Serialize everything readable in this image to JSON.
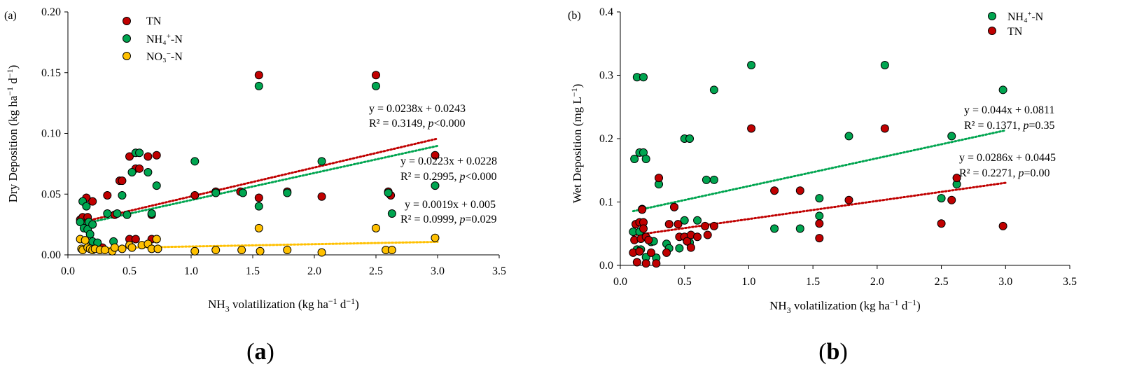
{
  "chart_data": [
    {
      "type": "scatter",
      "panel_tag": "(a)",
      "caption": {
        "open": "(",
        "letter": "a",
        "close": ")"
      },
      "xlabel": {
        "pre": "NH",
        "sub": "3",
        "post": " volatilization (kg ha",
        "sup": "−1",
        "mid": " d",
        "sup2": "−1",
        "end": ")"
      },
      "ylabel": {
        "pre": "Dry Deposition (kg ha",
        "sup": "−1",
        "mid": " d",
        "sup2": "−1",
        "end": ")"
      },
      "xlim": [
        0,
        3.5
      ],
      "ylim": [
        0,
        0.2
      ],
      "xticks": [
        "0.0",
        "0.5",
        "1.0",
        "1.5",
        "2.0",
        "2.5",
        "3.0",
        "3.5"
      ],
      "xtick_values": [
        0,
        0.5,
        1,
        1.5,
        2,
        2.5,
        3,
        3.5
      ],
      "yticks": [
        "0.00",
        "0.05",
        "0.10",
        "0.15",
        "0.20"
      ],
      "ytick_values": [
        0,
        0.05,
        0.1,
        0.15,
        0.2
      ],
      "legend_position": "top-left",
      "series": [
        {
          "name": "TN",
          "legend": {
            "base": "TN",
            "sup": "",
            "end": ""
          },
          "color": "#c00000",
          "points": [
            [
              0.1,
              0.029
            ],
            [
              0.12,
              0.031
            ],
            [
              0.15,
              0.047
            ],
            [
              0.16,
              0.031
            ],
            [
              0.2,
              0.044
            ],
            [
              0.24,
              0.008
            ],
            [
              0.28,
              0.006
            ],
            [
              0.32,
              0.049
            ],
            [
              0.38,
              0.033
            ],
            [
              0.42,
              0.061
            ],
            [
              0.44,
              0.061
            ],
            [
              0.5,
              0.081
            ],
            [
              0.5,
              0.013
            ],
            [
              0.55,
              0.071
            ],
            [
              0.55,
              0.013
            ],
            [
              0.58,
              0.071
            ],
            [
              0.65,
              0.081
            ],
            [
              0.68,
              0.013
            ],
            [
              0.68,
              0.033
            ],
            [
              0.72,
              0.082
            ],
            [
              0.72,
              0.013
            ],
            [
              1.03,
              0.049
            ],
            [
              1.2,
              0.052
            ],
            [
              1.4,
              0.052
            ],
            [
              1.55,
              0.148
            ],
            [
              1.55,
              0.047
            ],
            [
              1.78,
              0.052
            ],
            [
              2.06,
              0.048
            ],
            [
              2.5,
              0.148
            ],
            [
              2.6,
              0.052
            ],
            [
              2.62,
              0.049
            ],
            [
              2.98,
              0.082
            ]
          ],
          "trend": {
            "x0": 0.1,
            "x1": 3.0,
            "slope": 0.0238,
            "intercept": 0.0243
          },
          "equation": "y = 0.0238x + 0.0243",
          "r2": {
            "pre": "R² = 0.3149, ",
            "p": "p",
            "post": "<0.000"
          }
        },
        {
          "name": "NH4+-N",
          "legend": {
            "base": "NH₄",
            "sup": "+",
            "end": "-N"
          },
          "color": "#00a550",
          "points": [
            [
              0.1,
              0.027
            ],
            [
              0.12,
              0.044
            ],
            [
              0.13,
              0.022
            ],
            [
              0.15,
              0.04
            ],
            [
              0.16,
              0.021
            ],
            [
              0.17,
              0.027
            ],
            [
              0.18,
              0.017
            ],
            [
              0.2,
              0.011
            ],
            [
              0.2,
              0.025
            ],
            [
              0.24,
              0.01
            ],
            [
              0.32,
              0.034
            ],
            [
              0.37,
              0.011
            ],
            [
              0.4,
              0.034
            ],
            [
              0.44,
              0.049
            ],
            [
              0.48,
              0.033
            ],
            [
              0.52,
              0.068
            ],
            [
              0.55,
              0.084
            ],
            [
              0.58,
              0.084
            ],
            [
              0.65,
              0.068
            ],
            [
              0.68,
              0.034
            ],
            [
              0.72,
              0.057
            ],
            [
              1.03,
              0.077
            ],
            [
              1.2,
              0.051
            ],
            [
              1.42,
              0.051
            ],
            [
              1.55,
              0.139
            ],
            [
              1.55,
              0.04
            ],
            [
              1.78,
              0.051
            ],
            [
              2.06,
              0.077
            ],
            [
              2.5,
              0.139
            ],
            [
              2.6,
              0.051
            ],
            [
              2.63,
              0.034
            ],
            [
              2.98,
              0.057
            ]
          ],
          "trend": {
            "x0": 0.1,
            "x1": 3.0,
            "slope": 0.0223,
            "intercept": 0.0228
          },
          "equation": "y = 0.0223x + 0.0228",
          "r2": {
            "pre": "R² = 0.2995, ",
            "p": "p",
            "post": "<0.000"
          }
        },
        {
          "name": "NO3--N",
          "legend": {
            "base": "NO₃",
            "sup": "−",
            "end": "-N"
          },
          "color": "#ffc000",
          "points": [
            [
              0.1,
              0.013
            ],
            [
              0.11,
              0.005
            ],
            [
              0.12,
              0.004
            ],
            [
              0.14,
              0.012
            ],
            [
              0.16,
              0.006
            ],
            [
              0.18,
              0.005
            ],
            [
              0.2,
              0.004
            ],
            [
              0.22,
              0.005
            ],
            [
              0.26,
              0.004
            ],
            [
              0.3,
              0.004
            ],
            [
              0.36,
              0.003
            ],
            [
              0.38,
              0.006
            ],
            [
              0.44,
              0.005
            ],
            [
              0.5,
              0.008
            ],
            [
              0.52,
              0.006
            ],
            [
              0.6,
              0.008
            ],
            [
              0.65,
              0.009
            ],
            [
              0.68,
              0.005
            ],
            [
              0.72,
              0.013
            ],
            [
              0.73,
              0.005
            ],
            [
              1.03,
              0.003
            ],
            [
              1.2,
              0.004
            ],
            [
              1.41,
              0.004
            ],
            [
              1.55,
              0.022
            ],
            [
              1.56,
              0.003
            ],
            [
              1.78,
              0.004
            ],
            [
              2.06,
              0.002
            ],
            [
              2.5,
              0.022
            ],
            [
              2.58,
              0.004
            ],
            [
              2.63,
              0.004
            ],
            [
              2.98,
              0.014
            ]
          ],
          "trend": {
            "x0": 0.1,
            "x1": 3.0,
            "slope": 0.0019,
            "intercept": 0.005
          },
          "equation": "y = 0.0019x + 0.005",
          "r2": {
            "pre": "R² = 0.0999, ",
            "p": "p",
            "post": "=0.029"
          }
        }
      ]
    },
    {
      "type": "scatter",
      "panel_tag": "(b)",
      "caption": {
        "open": "(",
        "letter": "b",
        "close": ")"
      },
      "xlabel": {
        "pre": "NH",
        "sub": "3",
        "post": " volatilization (kg ha",
        "sup": "−1",
        "mid": " d",
        "sup2": "−1",
        "end": ")"
      },
      "ylabel": {
        "pre": "Wet Deposition (mg L",
        "sup": "−1",
        "end": ")"
      },
      "xlim": [
        0,
        3.5
      ],
      "ylim": [
        0,
        0.4
      ],
      "xticks": [
        "0.0",
        "0.5",
        "1.0",
        "1.5",
        "2.0",
        "2.5",
        "3.0",
        "3.5"
      ],
      "xtick_values": [
        0,
        0.5,
        1,
        1.5,
        2,
        2.5,
        3,
        3.5
      ],
      "yticks": [
        "0.0",
        "0.1",
        "0.2",
        "0.3",
        "0.4"
      ],
      "ytick_values": [
        0,
        0.1,
        0.2,
        0.3,
        0.4
      ],
      "legend_position": "top-right",
      "series": [
        {
          "name": "NH4+-N",
          "legend": {
            "base": "NH₄",
            "sup": "+",
            "end": "-N"
          },
          "color": "#00a550",
          "points": [
            [
              0.1,
              0.053
            ],
            [
              0.11,
              0.168
            ],
            [
              0.13,
              0.297
            ],
            [
              0.13,
              0.025
            ],
            [
              0.15,
              0.178
            ],
            [
              0.15,
              0.053
            ],
            [
              0.16,
              0.025
            ],
            [
              0.17,
              0.089
            ],
            [
              0.18,
              0.297
            ],
            [
              0.18,
              0.178
            ],
            [
              0.2,
              0.168
            ],
            [
              0.2,
              0.013
            ],
            [
              0.24,
              0.037
            ],
            [
              0.26,
              0.038
            ],
            [
              0.28,
              0.012
            ],
            [
              0.3,
              0.128
            ],
            [
              0.36,
              0.034
            ],
            [
              0.38,
              0.027
            ],
            [
              0.42,
              0.092
            ],
            [
              0.46,
              0.027
            ],
            [
              0.5,
              0.071
            ],
            [
              0.5,
              0.2
            ],
            [
              0.54,
              0.2
            ],
            [
              0.54,
              0.036
            ],
            [
              0.6,
              0.071
            ],
            [
              0.67,
              0.135
            ],
            [
              0.73,
              0.277
            ],
            [
              0.73,
              0.135
            ],
            [
              1.02,
              0.316
            ],
            [
              1.2,
              0.058
            ],
            [
              1.4,
              0.058
            ],
            [
              1.55,
              0.106
            ],
            [
              1.55,
              0.078
            ],
            [
              1.78,
              0.204
            ],
            [
              2.06,
              0.316
            ],
            [
              2.5,
              0.106
            ],
            [
              2.58,
              0.204
            ],
            [
              2.62,
              0.128
            ],
            [
              2.98,
              0.277
            ]
          ],
          "trend": {
            "x0": 0.1,
            "x1": 3.0,
            "slope": 0.044,
            "intercept": 0.0811
          },
          "equation": "y = 0.044x + 0.0811",
          "r2": {
            "pre": "R² = 0.1371, ",
            "p": "p",
            "post": "=0.35"
          }
        },
        {
          "name": "TN",
          "legend": {
            "base": "TN",
            "sup": "",
            "end": ""
          },
          "color": "#c00000",
          "points": [
            [
              0.1,
              0.02
            ],
            [
              0.11,
              0.04
            ],
            [
              0.12,
              0.065
            ],
            [
              0.13,
              0.005
            ],
            [
              0.15,
              0.068
            ],
            [
              0.15,
              0.022
            ],
            [
              0.16,
              0.042
            ],
            [
              0.17,
              0.088
            ],
            [
              0.18,
              0.068
            ],
            [
              0.18,
              0.058
            ],
            [
              0.2,
              0.003
            ],
            [
              0.2,
              0.045
            ],
            [
              0.22,
              0.04
            ],
            [
              0.24,
              0.02
            ],
            [
              0.28,
              0.003
            ],
            [
              0.3,
              0.138
            ],
            [
              0.36,
              0.02
            ],
            [
              0.38,
              0.065
            ],
            [
              0.42,
              0.092
            ],
            [
              0.45,
              0.065
            ],
            [
              0.46,
              0.045
            ],
            [
              0.5,
              0.045
            ],
            [
              0.52,
              0.038
            ],
            [
              0.55,
              0.028
            ],
            [
              0.55,
              0.048
            ],
            [
              0.6,
              0.045
            ],
            [
              0.66,
              0.062
            ],
            [
              0.68,
              0.048
            ],
            [
              0.73,
              0.062
            ],
            [
              1.02,
              0.216
            ],
            [
              1.2,
              0.118
            ],
            [
              1.4,
              0.118
            ],
            [
              1.55,
              0.066
            ],
            [
              1.55,
              0.043
            ],
            [
              1.78,
              0.103
            ],
            [
              2.06,
              0.216
            ],
            [
              2.5,
              0.066
            ],
            [
              2.58,
              0.103
            ],
            [
              2.62,
              0.138
            ],
            [
              2.98,
              0.062
            ]
          ],
          "trend": {
            "x0": 0.1,
            "x1": 3.0,
            "slope": 0.0286,
            "intercept": 0.0445
          },
          "equation": "y = 0.0286x + 0.0445",
          "r2": {
            "pre": "R² = 0.2271, ",
            "p": "p",
            "post": "=0.00"
          }
        }
      ]
    }
  ]
}
